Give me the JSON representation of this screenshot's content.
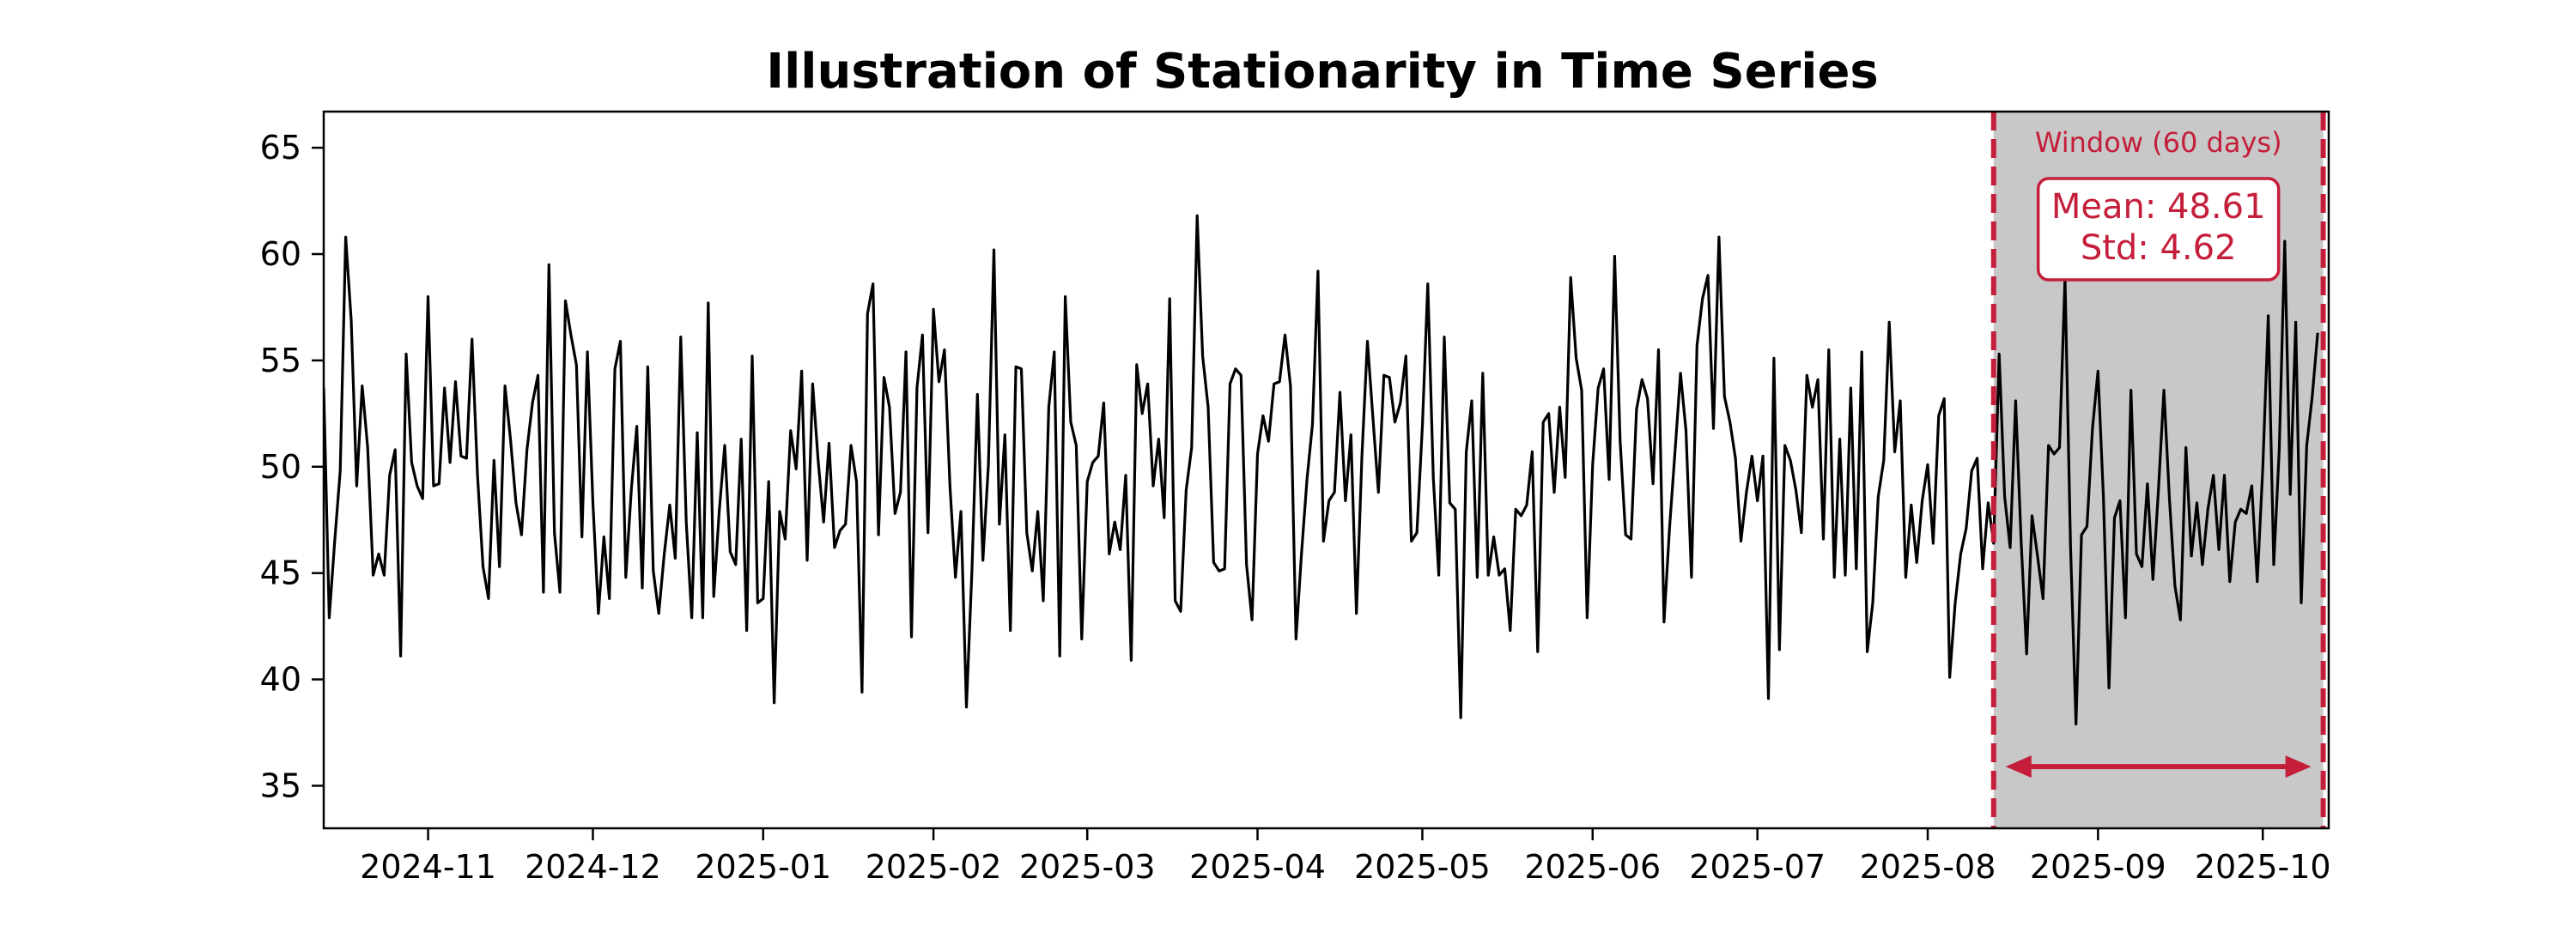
{
  "chart_data": {
    "type": "line",
    "title": "Illustration of Stationarity in Time Series",
    "xlabel": "",
    "ylabel": "",
    "x_range": [
      "2024-10-13",
      "2025-10-13"
    ],
    "ylim": [
      33,
      66.7
    ],
    "x_ticks": [
      "2024-11",
      "2024-12",
      "2025-01",
      "2025-02",
      "2025-03",
      "2025-04",
      "2025-05",
      "2025-06",
      "2025-07",
      "2025-08",
      "2025-09",
      "2025-10"
    ],
    "y_ticks": [
      35,
      40,
      45,
      50,
      55,
      60,
      65
    ],
    "grid": false,
    "legend": "none",
    "series": [
      {
        "color": "#000000",
        "start_date": "2024-10-13",
        "frequency": "daily",
        "values": [
          53.7,
          42.9,
          46.5,
          49.8,
          60.8,
          56.9,
          49.1,
          53.8,
          50.9,
          44.9,
          45.9,
          44.9,
          49.6,
          50.8,
          41.1,
          55.3,
          50.2,
          49.1,
          48.5,
          58.0,
          49.1,
          49.2,
          53.7,
          50.2,
          54.0,
          50.5,
          50.4,
          56.0,
          49.6,
          45.3,
          43.8,
          50.3,
          45.3,
          53.8,
          51.3,
          48.3,
          46.8,
          50.8,
          53.0,
          54.3,
          44.1,
          59.5,
          46.9,
          44.1,
          57.8,
          56.2,
          54.8,
          46.7,
          55.4,
          48.3,
          43.1,
          46.7,
          43.8,
          54.6,
          55.9,
          44.8,
          48.9,
          51.9,
          44.3,
          54.7,
          45.1,
          43.1,
          45.9,
          48.2,
          45.7,
          56.1,
          47.4,
          42.9,
          51.6,
          42.9,
          57.7,
          43.9,
          47.9,
          51.0,
          46.0,
          45.4,
          51.3,
          42.3,
          55.2,
          43.6,
          43.8,
          49.3,
          38.9,
          47.9,
          46.6,
          51.7,
          49.9,
          54.5,
          45.6,
          53.9,
          50.3,
          47.4,
          51.1,
          46.2,
          47.0,
          47.3,
          51.0,
          49.3,
          39.4,
          57.2,
          58.6,
          46.8,
          54.2,
          52.8,
          47.8,
          48.8,
          55.4,
          42.0,
          53.7,
          56.2,
          46.9,
          57.4,
          54.0,
          55.5,
          49.1,
          44.8,
          47.9,
          38.7,
          45.1,
          53.4,
          45.6,
          50.1,
          60.2,
          47.3,
          51.5,
          42.3,
          54.7,
          54.6,
          46.9,
          45.1,
          47.9,
          43.7,
          52.8,
          55.4,
          41.1,
          58.0,
          52.1,
          51.0,
          41.9,
          49.3,
          50.2,
          50.5,
          53.0,
          45.9,
          47.4,
          46.1,
          49.6,
          40.9,
          54.8,
          52.5,
          53.9,
          49.1,
          51.3,
          47.6,
          57.9,
          43.7,
          43.2,
          48.9,
          50.9,
          61.8,
          55.2,
          52.8,
          45.5,
          45.1,
          45.2,
          53.9,
          54.6,
          54.3,
          45.4,
          42.8,
          50.6,
          52.4,
          51.2,
          53.9,
          54.0,
          56.2,
          53.8,
          41.9,
          45.9,
          49.4,
          52.0,
          59.2,
          46.5,
          48.4,
          48.8,
          53.5,
          48.4,
          51.5,
          43.1,
          50.5,
          55.9,
          52.3,
          48.8,
          54.3,
          54.2,
          52.1,
          53.0,
          55.2,
          46.5,
          46.9,
          51.9,
          58.6,
          49.5,
          44.9,
          56.1,
          48.3,
          48.0,
          38.2,
          50.7,
          53.1,
          44.8,
          54.4,
          44.9,
          46.7,
          44.9,
          45.2,
          42.3,
          48.0,
          47.7,
          48.2,
          50.7,
          41.3,
          52.1,
          52.5,
          48.8,
          52.8,
          49.5,
          58.9,
          55.1,
          53.6,
          42.9,
          50.1,
          53.7,
          54.6,
          49.4,
          59.9,
          51.2,
          46.8,
          46.6,
          52.7,
          54.1,
          53.2,
          49.2,
          55.5,
          42.7,
          47.1,
          50.7,
          54.4,
          51.7,
          44.8,
          55.7,
          57.9,
          59.0,
          51.8,
          60.8,
          53.3,
          52.1,
          50.4,
          46.5,
          48.8,
          50.5,
          48.4,
          50.5,
          39.1,
          55.1,
          41.4,
          51.0,
          50.3,
          48.9,
          46.9,
          54.3,
          52.8,
          54.1,
          46.6,
          55.5,
          44.8,
          51.3,
          44.9,
          53.7,
          45.2,
          55.4,
          41.3,
          43.6,
          48.6,
          50.3,
          56.8,
          50.7,
          53.1,
          44.8,
          48.2,
          45.5,
          48.4,
          50.1,
          46.4,
          52.4,
          53.2,
          40.1,
          43.6,
          45.9,
          47.1,
          49.8,
          50.4,
          45.2,
          48.3,
          46.4,
          55.3,
          48.6,
          46.2,
          53.1,
          46.5,
          41.2,
          47.7,
          45.8,
          43.8,
          51.0,
          50.6,
          50.9,
          58.9,
          46.3,
          37.9,
          46.8,
          47.2,
          51.8,
          54.5,
          48.5,
          39.6,
          47.6,
          48.4,
          42.9,
          53.6,
          45.9,
          45.3,
          49.2,
          44.7,
          48.9,
          53.6,
          48.5,
          44.4,
          42.8,
          50.9,
          45.8,
          48.3,
          45.4,
          48.0,
          49.6,
          46.1,
          49.6,
          44.6,
          47.4,
          48.0,
          47.8,
          49.1,
          44.6,
          49.9,
          57.1,
          45.4,
          50.8,
          60.6,
          48.7,
          56.8,
          43.6,
          51.0,
          53.3,
          56.3
        ]
      }
    ],
    "window": {
      "start": "2025-08-13",
      "end": "2025-10-12",
      "label": "Window (60 days)",
      "mean_label": "Mean: 48.61",
      "std_label": "Std: 4.62",
      "color": "#c41e3a",
      "shade_color": "#c8c8c8"
    }
  }
}
